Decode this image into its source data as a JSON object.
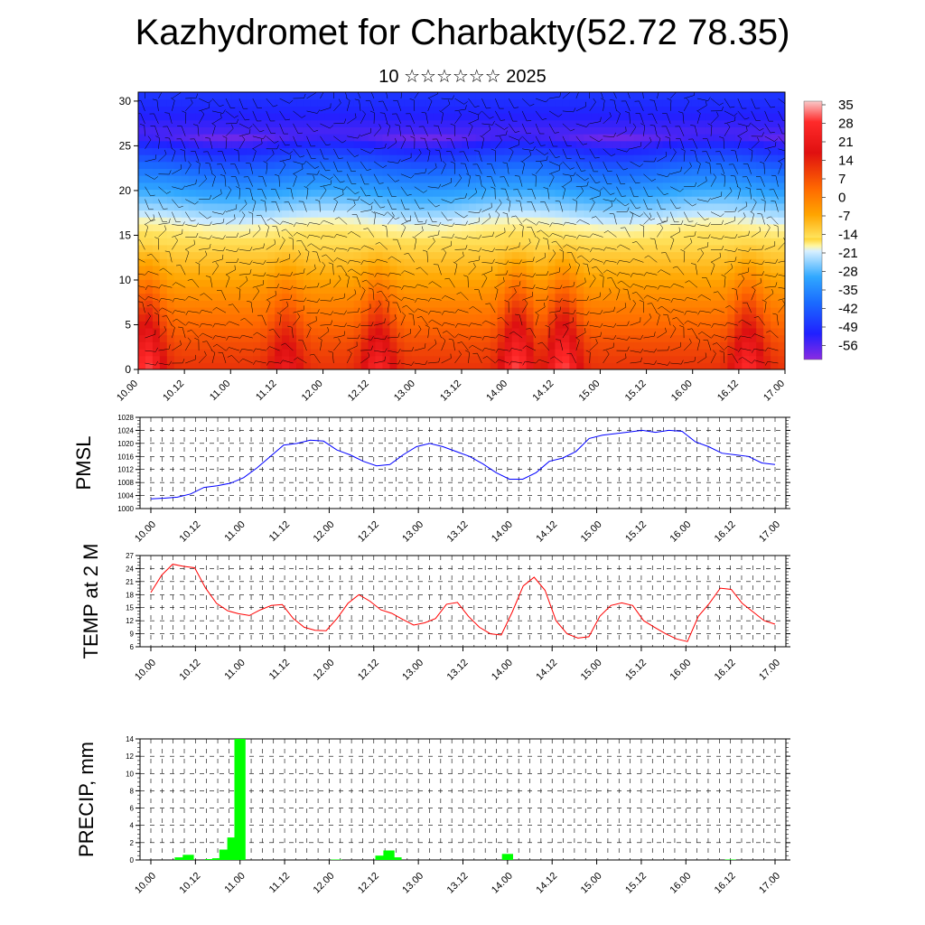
{
  "title": "Kazhydromet for Charbakty(52.72 78.35)",
  "subtitle": "10 ☆☆☆☆☆☆ 2025",
  "time_labels": [
    "10.00",
    "10.12",
    "11.00",
    "11.12",
    "12.00",
    "12.12",
    "13.00",
    "13.12",
    "14.00",
    "14.12",
    "15.00",
    "15.12",
    "16.00",
    "16.12",
    "17.00"
  ],
  "colors": {
    "pmsl_line": "#0000ff",
    "temp_line": "#ff0000",
    "precip_bar": "#00ff00"
  },
  "chart_data": [
    {
      "type": "heatmap",
      "title": "",
      "xlabel": "",
      "ylabel": "",
      "x_range": [
        "10.00",
        "17.00"
      ],
      "ylim": [
        0,
        31
      ],
      "y_ticks": [
        0,
        5,
        10,
        15,
        20,
        25,
        30
      ],
      "colorbar_labels": [
        "35",
        "28",
        "21",
        "14",
        "7",
        "0",
        "-7",
        "-14",
        "-21",
        "-28",
        "-35",
        "-42",
        "-49",
        "-56"
      ],
      "colorbar_range": [
        -60,
        38
      ],
      "note_overlay": "wind barbs",
      "surface_warm_cores": [
        {
          "time": 10.1,
          "value": 30
        },
        {
          "time": 11.6,
          "value": 24
        },
        {
          "time": 12.6,
          "value": 27
        },
        {
          "time": 14.1,
          "value": 30
        },
        {
          "time": 14.6,
          "value": 30
        },
        {
          "time": 16.6,
          "value": 28
        }
      ],
      "cold_band_level": 26,
      "freezing_level": 15
    },
    {
      "type": "line",
      "ylabel": "PMSL",
      "ylim": [
        1000,
        1028
      ],
      "y_ticks": [
        1000,
        1004,
        1008,
        1012,
        1016,
        1020,
        1024,
        1028
      ],
      "grid": true,
      "series": [
        {
          "values": [
            1003,
            1003.2,
            1003.5,
            1004.5,
            1006.5,
            1007,
            1007.8,
            1009.5,
            1012.5,
            1016,
            1019.5,
            1020,
            1021,
            1020.7,
            1018,
            1016.5,
            1014.5,
            1013.1,
            1013.5,
            1016.5,
            1019,
            1020,
            1019,
            1017.5,
            1016,
            1013.7,
            1011,
            1009,
            1009,
            1011,
            1014.5,
            1015.5,
            1017.5,
            1021.5,
            1022.5,
            1023,
            1023.5,
            1024,
            1023.4,
            1024,
            1023.7,
            1020.5,
            1019,
            1017,
            1016.5,
            1016,
            1014,
            1013.5
          ]
        }
      ]
    },
    {
      "type": "line",
      "ylabel": "TEMP at 2 M",
      "ylim": [
        6,
        27
      ],
      "y_ticks": [
        6,
        9,
        12,
        15,
        18,
        21,
        24,
        27
      ],
      "grid": true,
      "series": [
        {
          "values": [
            18.5,
            22.5,
            25,
            24.5,
            24.2,
            19.5,
            16,
            14.3,
            13.6,
            13.2,
            14.5,
            15.5,
            15.7,
            12.5,
            10.5,
            9.8,
            9.7,
            12.5,
            16,
            18,
            16.5,
            14.5,
            13.7,
            12.3,
            11,
            11.5,
            12.5,
            15.8,
            16.2,
            13,
            10.5,
            9,
            8.7,
            14,
            20,
            22,
            19,
            12,
            9,
            8,
            8.3,
            13,
            15.5,
            16.1,
            15.5,
            12,
            10.5,
            9,
            7.8,
            7.2,
            13,
            16,
            19.5,
            19.2,
            16,
            14,
            12,
            11.2
          ]
        }
      ]
    },
    {
      "type": "bar",
      "ylabel": "PRECIP, mm",
      "ylim": [
        0,
        14
      ],
      "y_ticks": [
        0,
        2,
        4,
        6,
        8,
        10,
        12,
        14
      ],
      "grid": true,
      "bars": [
        {
          "time": 10.33,
          "value": 0.3
        },
        {
          "time": 10.42,
          "value": 0.6
        },
        {
          "time": 10.67,
          "value": 0.1
        },
        {
          "time": 10.75,
          "value": 0.2
        },
        {
          "time": 10.83,
          "value": 1.2
        },
        {
          "time": 10.92,
          "value": 2.6
        },
        {
          "time": 11.0,
          "value": 14
        },
        {
          "time": 12.08,
          "value": 0.05
        },
        {
          "time": 12.58,
          "value": 0.5
        },
        {
          "time": 12.67,
          "value": 1.1
        },
        {
          "time": 12.75,
          "value": 0.3
        },
        {
          "time": 14.0,
          "value": 0.7
        },
        {
          "time": 16.5,
          "value": 0.05
        }
      ]
    }
  ]
}
